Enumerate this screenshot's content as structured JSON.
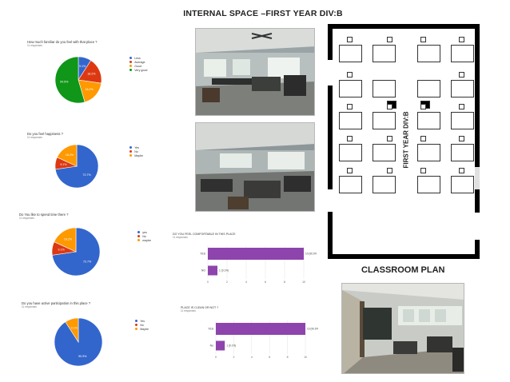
{
  "title": "INTERNAL SPACE –FIRST YEAR DIV:B",
  "plan_label": "FIRST YEAR DIV:B",
  "plan_caption": "CLASSROOM PLAN",
  "pies": [
    {
      "question": "How much familiar do you feel with that place ?",
      "responses": "11 responses",
      "legend": [
        "Less",
        "Average",
        "Good",
        "Very good"
      ],
      "colors": [
        "#3366cc",
        "#dc3912",
        "#ff9900",
        "#109618"
      ],
      "values": [
        9.1,
        18.2,
        18.2,
        54.5
      ],
      "labels": [
        "9.1%",
        "18.2%",
        "18.2%",
        "54.5%"
      ]
    },
    {
      "question": "Do you feel happiness ?",
      "responses": "11 responses",
      "legend": [
        "Yes",
        "No",
        "Maybe"
      ],
      "colors": [
        "#3366cc",
        "#dc3912",
        "#ff9900"
      ],
      "values": [
        72.7,
        9.1,
        18.2
      ],
      "labels": [
        "72.7%",
        "9.1%",
        "18.2%"
      ]
    },
    {
      "question": "Do You like to spend time there ?",
      "responses": "11 responses",
      "legend": [
        "yes",
        "No",
        "maybe"
      ],
      "colors": [
        "#3366cc",
        "#dc3912",
        "#ff9900"
      ],
      "values": [
        72.7,
        9.1,
        18.2
      ],
      "labels": [
        "72.7%",
        "9.1%",
        "18.2%"
      ]
    },
    {
      "question": "Do you have active participation in this place ?",
      "responses": "11 responses",
      "legend": [
        "Yes",
        "No",
        "Maybe"
      ],
      "colors": [
        "#3366cc",
        "#dc3912",
        "#ff9900"
      ],
      "values": [
        90.9,
        0,
        9.1
      ],
      "labels": [
        "90.9%",
        "",
        "9.1%"
      ]
    }
  ],
  "bars": [
    {
      "question": "DO YOU FEEL COMFORTABLE IN THIS PLACE",
      "responses": "11 responses",
      "categories": [
        "YES",
        "NO"
      ],
      "values": [
        10,
        1
      ],
      "labels": [
        "10 (90.9%)",
        "1 (9.1%)"
      ],
      "ticks": [
        "0",
        "2",
        "4",
        "6",
        "8",
        "10"
      ],
      "color": "#8e44ad"
    },
    {
      "question": "PLACE IS CLEAN OR NOT ?",
      "responses": "11 responses",
      "categories": [
        "YES",
        "No"
      ],
      "values": [
        10,
        1
      ],
      "labels": [
        "10 (90.9%)",
        "1 (9.1%)"
      ],
      "ticks": [
        "0",
        "2",
        "4",
        "6",
        "8",
        "10"
      ],
      "color": "#8e44ad"
    }
  ],
  "chart_data": [
    {
      "type": "pie",
      "title": "How much familiar do you feel with that place ?",
      "categories": [
        "Less",
        "Average",
        "Good",
        "Very good"
      ],
      "values": [
        9.1,
        18.2,
        18.2,
        54.5
      ]
    },
    {
      "type": "pie",
      "title": "Do you feel happiness ?",
      "categories": [
        "Yes",
        "No",
        "Maybe"
      ],
      "values": [
        72.7,
        9.1,
        18.2
      ]
    },
    {
      "type": "pie",
      "title": "Do You like to spend time there ?",
      "categories": [
        "yes",
        "No",
        "maybe"
      ],
      "values": [
        72.7,
        9.1,
        18.2
      ]
    },
    {
      "type": "pie",
      "title": "Do you have active participation in this place ?",
      "categories": [
        "Yes",
        "No",
        "Maybe"
      ],
      "values": [
        90.9,
        0,
        9.1
      ]
    },
    {
      "type": "bar",
      "title": "DO YOU FEEL COMFORTABLE IN THIS PLACE",
      "categories": [
        "YES",
        "NO"
      ],
      "values": [
        10,
        1
      ],
      "xlim": [
        0,
        10
      ]
    },
    {
      "type": "bar",
      "title": "PLACE IS CLEAN OR NOT ?",
      "categories": [
        "YES",
        "No"
      ],
      "values": [
        10,
        1
      ],
      "xlim": [
        0,
        10
      ]
    }
  ]
}
